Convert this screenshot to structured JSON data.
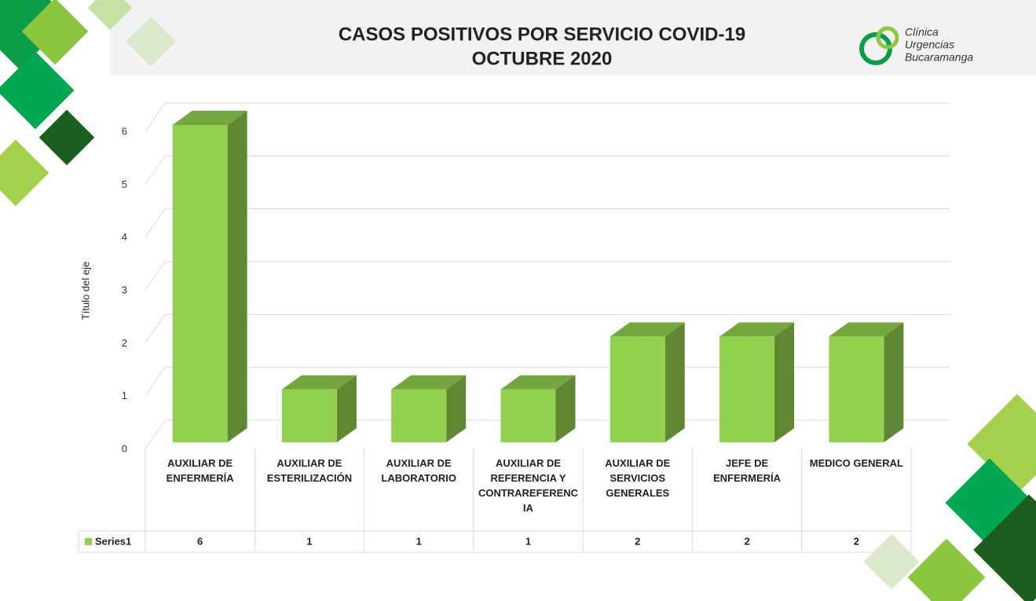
{
  "chart_data": {
    "type": "bar3d",
    "title": "CASOS POSITIVOS POR SERVICIO COVID-19",
    "subtitle": "OCTUBRE 2020",
    "y_label": "Título del eje",
    "categories": [
      "AUXILIAR DE ENFERMERÍA",
      "AUXILIAR DE ESTERILIZACIÓN",
      "AUXILIAR DE LABORATORIO",
      "AUXILIAR DE REFERENCIA Y CONTRAREFERENCIA",
      "AUXILIAR DE SERVICIOS GENERALES",
      "JEFE DE ENFERMERÍA",
      "MEDICO GENERAL"
    ],
    "series": [
      {
        "name": "Series1",
        "color": "#92d050",
        "values": [
          6,
          1,
          1,
          1,
          2,
          2,
          2
        ]
      }
    ],
    "ylim": [
      0,
      6
    ],
    "yticks": [
      0,
      1,
      2,
      3,
      4,
      5,
      6
    ],
    "grid": true,
    "data_table": true
  },
  "logo": [
    "Clínica",
    "Urgencias",
    "Bucaramanga"
  ]
}
